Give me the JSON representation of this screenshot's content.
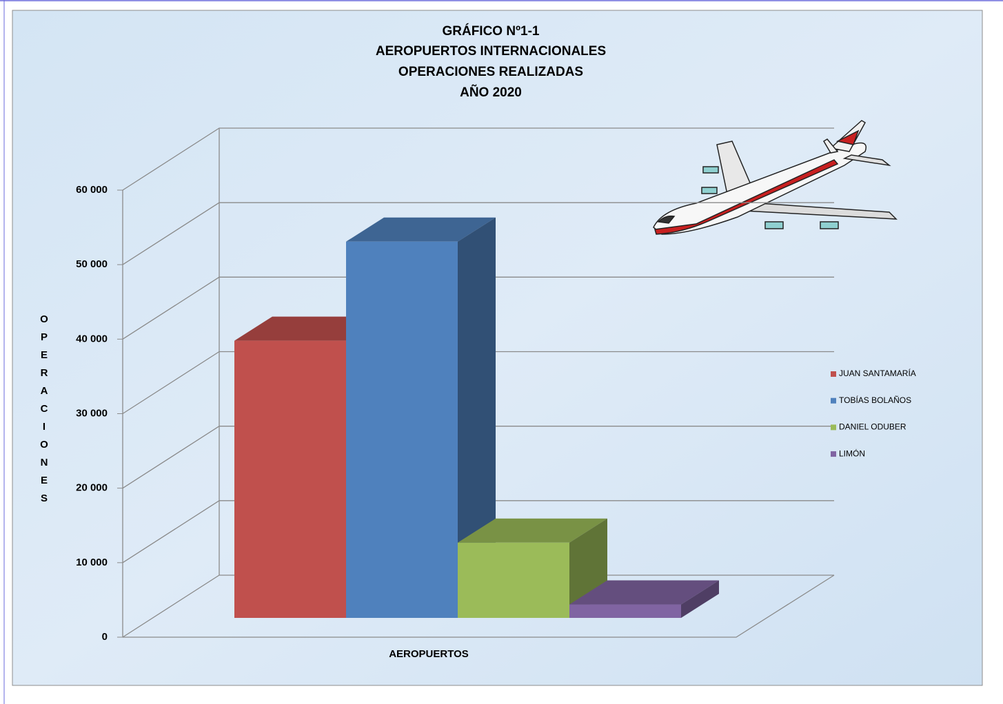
{
  "chart_data": {
    "type": "bar3d",
    "title": [
      "GRÁFICO Nº1-1",
      "AEROPUERTOS INTERNACIONALES",
      "OPERACIONES REALIZADAS",
      "AÑO 2020"
    ],
    "y_label": "OPERACIONES",
    "x_label": "AEROPUERTOS",
    "categories": [
      null
    ],
    "series": [
      {
        "name": "JUAN SANTAMARÍA",
        "color": "#c0504d",
        "values": [
          37200
        ]
      },
      {
        "name": "TOBÍAS BOLAÑOS",
        "color": "#4f81bd",
        "values": [
          50500
        ]
      },
      {
        "name": "DANIEL ODUBER",
        "color": "#9bbb59",
        "values": [
          10100
        ]
      },
      {
        "name": "LIMÓN",
        "color": "#8064a2",
        "values": [
          1800
        ]
      }
    ],
    "ylim": [
      0,
      60000
    ],
    "yticks": [
      0,
      {
        "value": 10000,
        "label": "10 000"
      },
      {
        "value": 20000,
        "label": "20 000"
      },
      {
        "value": 30000,
        "label": "30 000"
      },
      {
        "value": 40000,
        "label": "40 000"
      },
      {
        "value": 50000,
        "label": "50 000"
      },
      {
        "value": 60000,
        "label": "60 000"
      }
    ],
    "grid": true,
    "legend": "right"
  }
}
